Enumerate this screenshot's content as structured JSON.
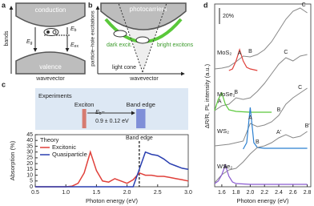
{
  "panel_a": {
    "label": "a",
    "conduction": "conduction",
    "valence": "valence",
    "y_axis": "bands",
    "x_axis": "wavevector",
    "eb": {
      "main": "E",
      "sub": "b"
    },
    "eg": {
      "main": "E",
      "sub": "g"
    },
    "eex": {
      "main": "E",
      "sub": "ex"
    }
  },
  "panel_b": {
    "label": "b",
    "photocarriers": "photocarriers",
    "y_axis": "particle–hole excitations",
    "x_axis": "wavevector",
    "dark": "dark excit.",
    "bright": "bright excitons",
    "light_cone": "light cone"
  },
  "panel_c_experiments": {
    "title": "Experiments",
    "exciton": "Exciton",
    "band_edge": "Band edge",
    "exciton_energy": 1.3,
    "band_edge_range": [
      2.15,
      2.3
    ],
    "eb": {
      "main": "E",
      "sub": "b",
      "suffix": "~"
    },
    "eb_value": "0.9 ± 0.12 eV"
  },
  "chart_data": [
    {
      "type": "line",
      "panel_label": "c",
      "x_label": "Photon energy (eV)",
      "y_label": "Absorption (%)",
      "legend_title": "Theory",
      "xlim": [
        0.5,
        3.0
      ],
      "xticks": [
        0.5,
        {
          "value": 1.0,
          "label": "1.0"
        },
        1.5,
        {
          "value": 2.0,
          "label": "2.0"
        },
        2.5,
        {
          "value": 3.0,
          "label": "3.0"
        }
      ],
      "ylim": [
        0,
        45
      ],
      "yticks": [
        0,
        5,
        10,
        15,
        20,
        25,
        30,
        35,
        40,
        45
      ],
      "band_edge": 2.2,
      "band_edge_label": "Band edge",
      "x": [
        0.5,
        0.6,
        0.7,
        0.8,
        0.9,
        1.0,
        1.1,
        1.2,
        1.3,
        1.4,
        1.5,
        1.6,
        1.7,
        1.8,
        1.9,
        2.0,
        2.1,
        2.2,
        2.3,
        2.4,
        2.5,
        2.6,
        2.7,
        2.8,
        2.9,
        3.0
      ],
      "series": [
        {
          "name": "Excitonic",
          "color": "#e0403a",
          "values": [
            0,
            0,
            0,
            0,
            0,
            0,
            0.5,
            3,
            12,
            30,
            14,
            5,
            4,
            7,
            5,
            3,
            6,
            12,
            10,
            10,
            9,
            9,
            8,
            7,
            6,
            5
          ]
        },
        {
          "name": "Quasiparticle",
          "color": "#2a3fb0",
          "values": [
            0,
            0,
            0,
            0,
            0,
            0,
            0,
            0,
            0,
            0,
            0,
            0,
            0,
            0,
            0,
            0,
            0,
            15,
            30,
            28,
            27,
            24,
            20,
            18,
            16,
            15
          ]
        }
      ]
    },
    {
      "type": "line",
      "panel_label": "d",
      "x_label": "Photon energy (eV)",
      "y_label": "ΔR/R, PL intensity (a.u.)",
      "scale_bar": {
        "label": "20%",
        "value": 20
      },
      "xlim": [
        1.5,
        2.85
      ],
      "xticks": [
        1.6,
        1.8,
        {
          "value": 2.0,
          "label": "2.0"
        },
        2.2,
        2.4,
        2.6,
        2.8
      ],
      "x": [
        1.5,
        1.6,
        1.7,
        1.8,
        1.9,
        2.0,
        2.1,
        2.2,
        2.3,
        2.4,
        2.5,
        2.6,
        2.7,
        2.8
      ],
      "samples": [
        {
          "name": "MoS₂",
          "reflectance": {
            "color": "#888888",
            "values": [
              2,
              3,
              5,
              11,
              18,
              17,
              20,
              26,
              36,
              50,
              64,
              74,
              78,
              72
            ]
          },
          "pl": {
            "color": "#e0403a",
            "x": [
              1.7,
              1.75,
              1.8,
              1.85,
              1.9,
              1.95,
              2.0,
              2.1
            ],
            "values": [
              0,
              2,
              12,
              26,
              12,
              4,
              2,
              0
            ]
          },
          "peaks": [
            {
              "label": "A",
              "x": 1.85
            },
            {
              "label": "B",
              "x": 2.0
            },
            {
              "label": "C",
              "x": 2.75
            }
          ]
        },
        {
          "name": "MoSe₂",
          "reflectance": {
            "color": "#888888",
            "values": [
              2,
              8,
              10,
              18,
              16,
              18,
              26,
              36,
              48,
              60,
              68,
              64,
              70,
              72
            ]
          },
          "pl": {
            "color": "#5ac83a",
            "x": [
              1.5,
              1.55,
              1.6,
              1.65,
              1.7,
              1.8,
              2.0,
              2.3
            ],
            "values": [
              2,
              16,
              24,
              10,
              3,
              1,
              0,
              0
            ]
          },
          "peaks": [
            {
              "label": "A",
              "x": 1.57
            },
            {
              "label": "B",
              "x": 1.8
            },
            {
              "label": "C",
              "x": 2.5
            }
          ]
        },
        {
          "name": "WS₂",
          "reflectance": {
            "color": "#888888",
            "values": [
              4,
              5,
              6,
              8,
              10,
              32,
              28,
              30,
              34,
              42,
              56,
              64,
              70,
              76
            ]
          },
          "pl": {
            "color": "#2a7fd0",
            "x": [
              1.9,
              1.95,
              2.0,
              2.05,
              2.1,
              2.2,
              2.8
            ],
            "values": [
              0,
              8,
              52,
              8,
              2,
              1,
              1
            ]
          },
          "peaks": [
            {
              "label": "A",
              "x": 2.0
            },
            {
              "label": "B",
              "x": 2.4
            },
            {
              "label": "C",
              "x": 2.7
            }
          ]
        },
        {
          "name": "WSe₂",
          "reflectance": {
            "color": "#888888",
            "values": [
              2,
              12,
              18,
              20,
              28,
              38,
              46,
              48,
              52,
              58,
              62,
              58,
              60,
              66
            ]
          },
          "pl": {
            "color": "#8a5ad0",
            "x": [
              1.5,
              1.55,
              1.6,
              1.65,
              1.7,
              1.75,
              1.8,
              2.0,
              2.8
            ],
            "values": [
              1,
              4,
              12,
              24,
              10,
              3,
              1,
              0,
              0
            ]
          },
          "peaks": [
            {
              "label": "A",
              "x": 1.65
            },
            {
              "label": "B",
              "x": 2.1
            },
            {
              "label": "A′",
              "x": 2.4
            },
            {
              "label": "B′",
              "x": 2.8
            }
          ]
        }
      ]
    }
  ]
}
